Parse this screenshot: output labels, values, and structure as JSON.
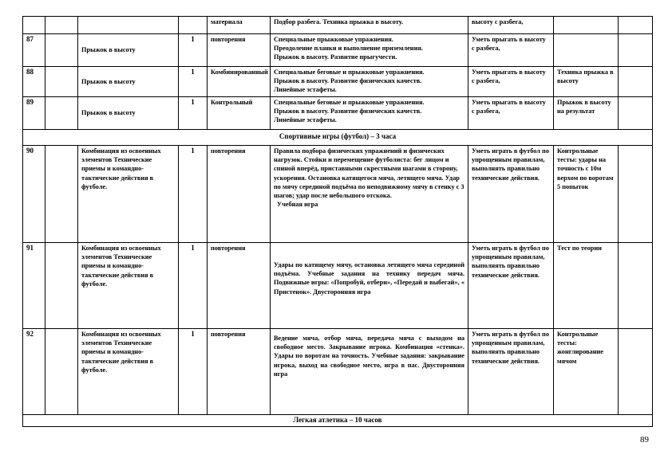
{
  "rows_top": [
    {
      "num": "",
      "hours": "",
      "topic": "",
      "type": "материала",
      "content": [
        "Подбор разбега. Техника прыжка в высоту."
      ],
      "req": "высоту с разбега,",
      "control": ""
    },
    {
      "num": "87",
      "hours": "1",
      "topic": "Прыжок в высоту",
      "type": "повторения",
      "content": [
        "Специальные прыжковые упражнения.",
        "Преодоление планки и выполнение приземления.",
        "Прыжок в высоту. Развитие прыгучести."
      ],
      "req": "Уметь прыгать в высоту с разбега,",
      "control": ""
    },
    {
      "num": "88",
      "hours": "1",
      "topic": "Прыжок в высоту",
      "type": "Комбинированный",
      "content": [
        "Специальные беговые и прыжковые упражнения.",
        "Прыжок в высоту. Развитие физических качеств.",
        "Линейные эстафеты."
      ],
      "req": "Уметь прыгать в высоту с разбега,",
      "control": "Техника прыжка в высоту"
    },
    {
      "num": "89",
      "hours": "1",
      "topic": "Прыжок в высоту",
      "type": "Контрольный",
      "content": [
        "Специальные беговые и прыжковые упражнения.",
        "Прыжок в высоту. Развитие физических качеств.",
        "Линейные эстафеты."
      ],
      "req": "Уметь прыгать в высоту с разбега,",
      "control": "Прыжок в высоту на результат"
    }
  ],
  "section_football": "Спортивные игры (футбол) –  3 часа",
  "rows_football": [
    {
      "num": "90",
      "hours": "1",
      "topic": "Комбинация из освоенных элементов Технические приемы и командно-тактические действия  в футболе.",
      "type": "повторения",
      "content": "Правила подбора физических упражнений и физических нагрузок. Стойки и перемещение футболиста: бег лицом и спиной вперёд, приставными скрестными шагами в сторону, ускорения. Остановка катящегося мяча, летящего мяча.  Удар по мячу серединой подъёма по неподвижному мячу  в стенку с 3 шагов; удар после небольшого отскока.",
      "extra": "Учебная игра",
      "req": "Уметь играть в футбол по упрощенным правилам, выполнять правильно технические действия.",
      "control": "Контрольные тесты: удары на точность с 10м верхом по воротам 5 попыток"
    },
    {
      "num": "91",
      "hours": "1",
      "topic": "Комбинация из освоенных элементов Технические приемы и командно-тактические действия  в футболе.",
      "type": "повторения",
      "content": "Удары по катящему мячу, остановка летящего мяча серединой подъёма. Учебные задания на технику передач мяча. Подвижные игры: «Попробуй, отбери», «Передай и выбегай», « Пристенок». Двусторонняя игра",
      "req": "Уметь играть в футбол по упрощенным правилам, выполнять правильно технические действия.",
      "control": "Тест по теории"
    },
    {
      "num": "92",
      "hours": "1",
      "topic": "Комбинация из освоенных элементов Технические приемы и командно-тактические действия  в футболе.",
      "type": "повторения",
      "content": "Ведение мяча, отбор мяча, передача мяча с выходом на свободное место. Закрывание игрока. Комбинация «стенка». Удары по воротам на точность. Учебные задания: закрывание игрока, выход на свободное место, игра в пас. Двусторонняя игра",
      "req": "Уметь играть в футбол по упрощенным правилам, выполнять правильно технические действия.",
      "control": "Контрольные тесты: жонглирование мячом"
    }
  ],
  "section_athletics": "Легкая атлетика – 10 часов",
  "page_number": "89"
}
